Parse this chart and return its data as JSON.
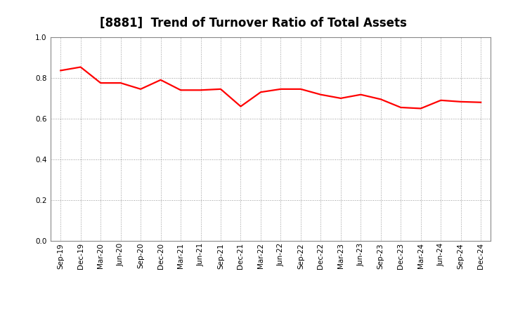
{
  "title": "[8881]  Trend of Turnover Ratio of Total Assets",
  "labels": [
    "Sep-19",
    "Dec-19",
    "Mar-20",
    "Jun-20",
    "Sep-20",
    "Dec-20",
    "Mar-21",
    "Jun-21",
    "Sep-21",
    "Dec-21",
    "Mar-22",
    "Jun-22",
    "Sep-22",
    "Dec-22",
    "Mar-23",
    "Jun-23",
    "Sep-23",
    "Dec-23",
    "Mar-24",
    "Jun-24",
    "Sep-24",
    "Dec-24"
  ],
  "values": [
    0.836,
    0.853,
    0.775,
    0.775,
    0.745,
    0.79,
    0.74,
    0.74,
    0.745,
    0.66,
    0.73,
    0.745,
    0.745,
    0.718,
    0.7,
    0.718,
    0.695,
    0.655,
    0.65,
    0.69,
    0.683,
    0.68
  ],
  "line_color": "#FF0000",
  "line_width": 1.6,
  "ylim": [
    0.0,
    1.0
  ],
  "yticks": [
    0.0,
    0.2,
    0.4,
    0.6,
    0.8,
    1.0
  ],
  "background_color": "#FFFFFF",
  "grid_color": "#999999",
  "title_fontsize": 12,
  "tick_fontsize": 7.5
}
